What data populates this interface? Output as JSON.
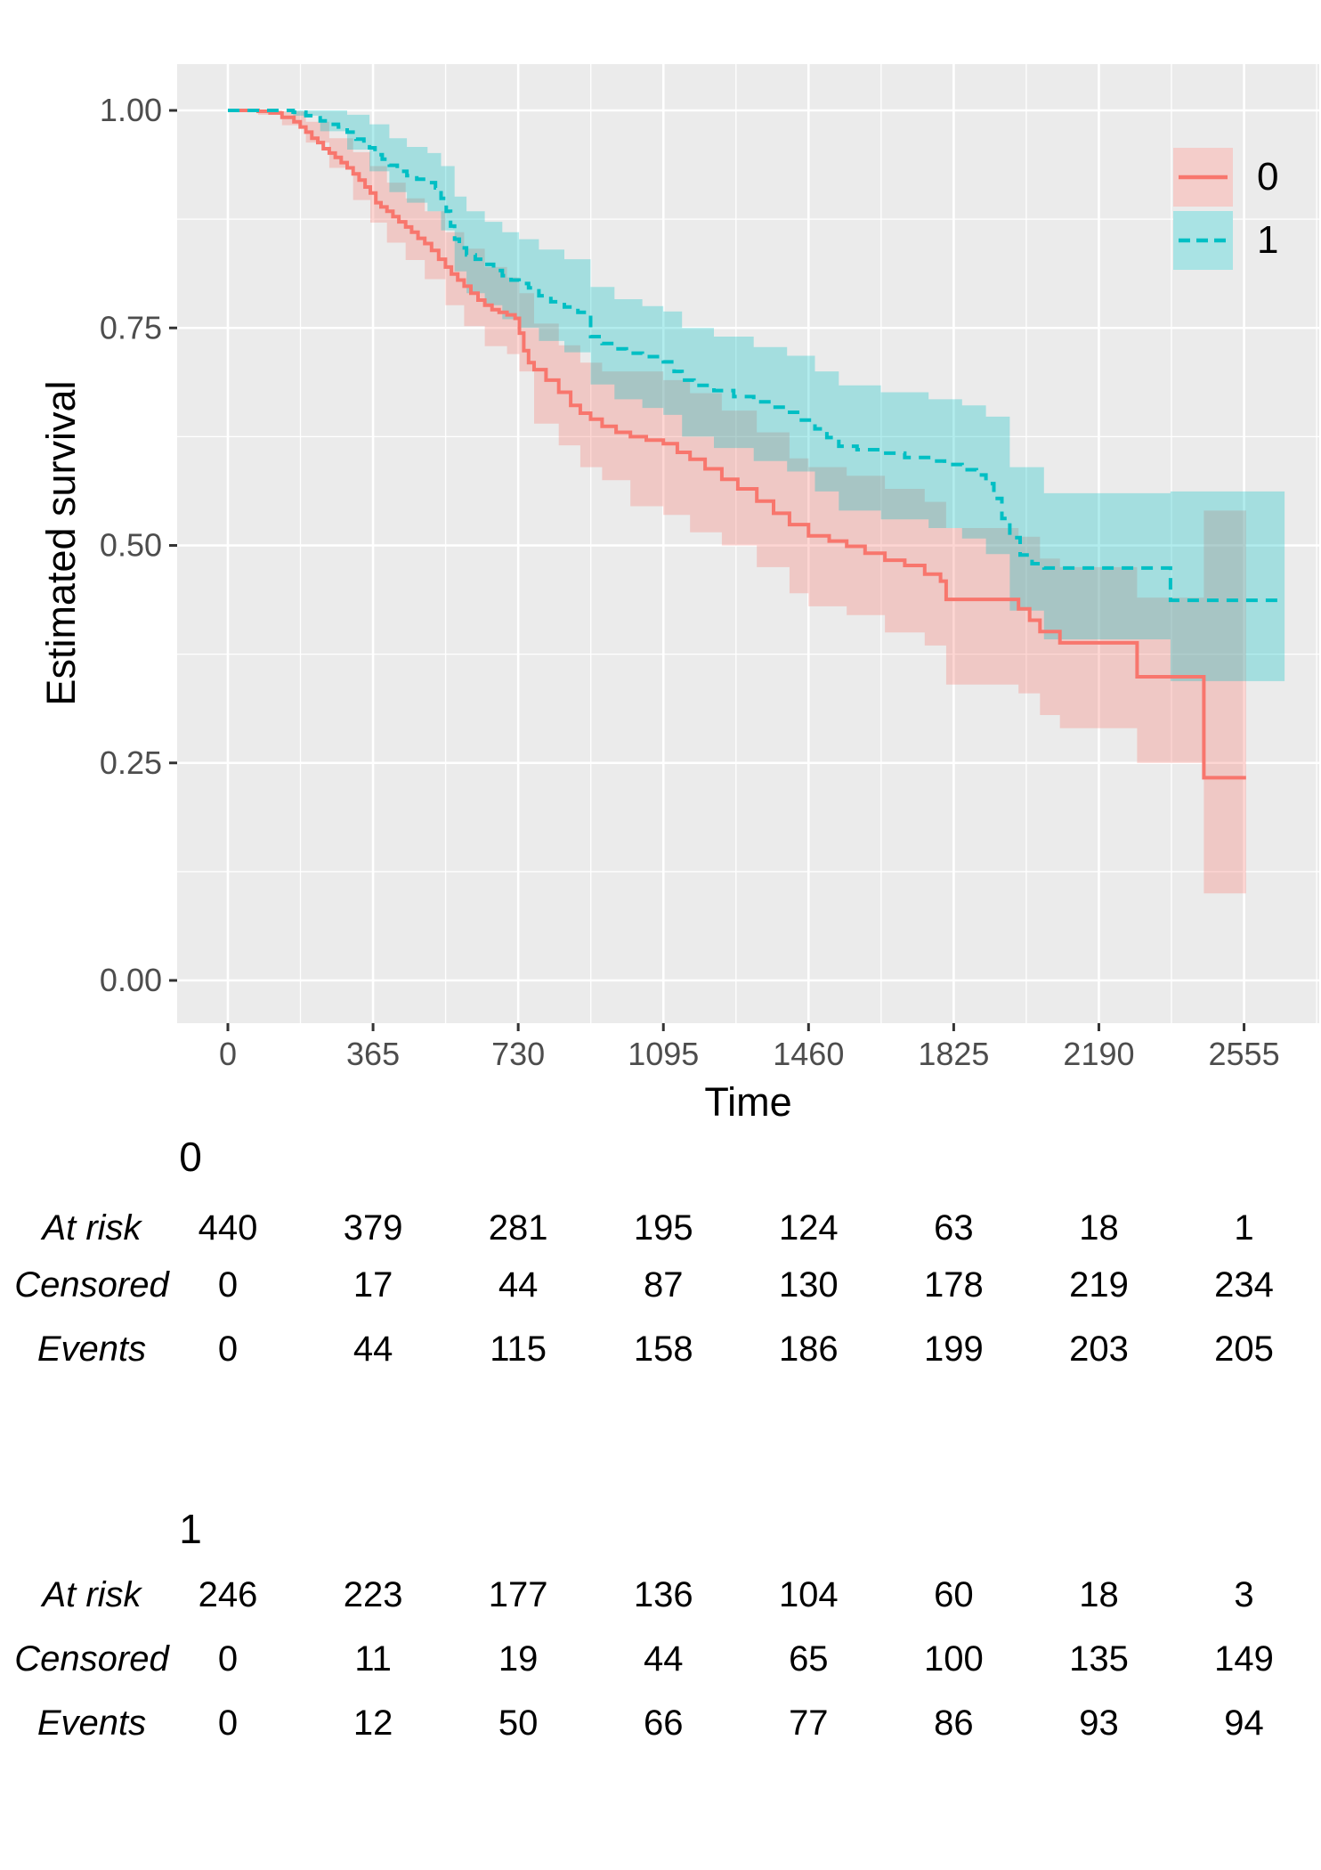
{
  "figure": {
    "panel_background": "#EBEBEB",
    "grid_color": "#FFFFFF",
    "tick_color": "#333333",
    "tick_label_color": "#4D4D4D",
    "legend_key_background": "#F2F2F2",
    "text_color": "#000000"
  },
  "chart_data": {
    "type": "line",
    "subtype": "kaplan_meier_step_with_confidence_bands",
    "title": "",
    "xlabel": "Time",
    "ylabel": "Estimated survival",
    "x_ticks": [
      0,
      365,
      730,
      1095,
      1460,
      1825,
      2190,
      2555
    ],
    "y_ticks": [
      0,
      0.25,
      0.5,
      0.75,
      1
    ],
    "y_tick_labels": [
      "0.00",
      "0.25",
      "0.50",
      "0.75",
      "1.00"
    ],
    "xlim": [
      -128,
      2745
    ],
    "ylim": [
      -0.051,
      1.051
    ],
    "grid": true,
    "legend_position": "inside-top-right",
    "series": [
      {
        "name": "0",
        "line_color": "#F8766D",
        "line_style": "solid",
        "band_color": "rgba(248,118,109,0.30)",
        "steps": [
          [
            0,
            1.0
          ],
          [
            76,
            0.999
          ],
          [
            106,
            0.997
          ],
          [
            136,
            0.992
          ],
          [
            166,
            0.987
          ],
          [
            182,
            0.981
          ],
          [
            196,
            0.975
          ],
          [
            211,
            0.968
          ],
          [
            226,
            0.963
          ],
          [
            240,
            0.956
          ],
          [
            255,
            0.951
          ],
          [
            270,
            0.946
          ],
          [
            285,
            0.94
          ],
          [
            300,
            0.934
          ],
          [
            315,
            0.927
          ],
          [
            330,
            0.92
          ],
          [
            345,
            0.912
          ],
          [
            358,
            0.905
          ],
          [
            372,
            0.894
          ],
          [
            385,
            0.889
          ],
          [
            400,
            0.884
          ],
          [
            415,
            0.878
          ],
          [
            430,
            0.872
          ],
          [
            447,
            0.866
          ],
          [
            462,
            0.86
          ],
          [
            478,
            0.853
          ],
          [
            495,
            0.847
          ],
          [
            512,
            0.839
          ],
          [
            530,
            0.829
          ],
          [
            547,
            0.82
          ],
          [
            562,
            0.812
          ],
          [
            578,
            0.805
          ],
          [
            594,
            0.798
          ],
          [
            611,
            0.79
          ],
          [
            629,
            0.782
          ],
          [
            646,
            0.776
          ],
          [
            664,
            0.771
          ],
          [
            682,
            0.768
          ],
          [
            702,
            0.765
          ],
          [
            722,
            0.761
          ],
          [
            733,
            0.744
          ],
          [
            744,
            0.724
          ],
          [
            756,
            0.71
          ],
          [
            770,
            0.702
          ],
          [
            800,
            0.69
          ],
          [
            832,
            0.676
          ],
          [
            862,
            0.661
          ],
          [
            886,
            0.652
          ],
          [
            912,
            0.645
          ],
          [
            941,
            0.637
          ],
          [
            976,
            0.63
          ],
          [
            1012,
            0.625
          ],
          [
            1052,
            0.621
          ],
          [
            1095,
            0.617
          ],
          [
            1130,
            0.607
          ],
          [
            1162,
            0.599
          ],
          [
            1200,
            0.588
          ],
          [
            1242,
            0.576
          ],
          [
            1282,
            0.565
          ],
          [
            1330,
            0.551
          ],
          [
            1372,
            0.537
          ],
          [
            1412,
            0.524
          ],
          [
            1460,
            0.511
          ],
          [
            1512,
            0.505
          ],
          [
            1556,
            0.499
          ],
          [
            1602,
            0.491
          ],
          [
            1652,
            0.483
          ],
          [
            1702,
            0.477
          ],
          [
            1752,
            0.467
          ],
          [
            1792,
            0.459
          ],
          [
            1806,
            0.438
          ],
          [
            1988,
            0.427
          ],
          [
            2016,
            0.414
          ],
          [
            2042,
            0.401
          ],
          [
            2092,
            0.388
          ],
          [
            2286,
            0.349
          ],
          [
            2454,
            0.233
          ],
          [
            2560,
            0.233
          ]
        ],
        "ci_steps": [
          [
            0,
            1.0,
            1.0
          ],
          [
            76,
            0.995,
            1.0
          ],
          [
            136,
            0.983,
            0.999
          ],
          [
            196,
            0.963,
            0.987
          ],
          [
            255,
            0.934,
            0.968
          ],
          [
            315,
            0.897,
            0.952
          ],
          [
            358,
            0.871,
            0.936
          ],
          [
            400,
            0.848,
            0.917
          ],
          [
            447,
            0.828,
            0.899
          ],
          [
            495,
            0.806,
            0.884
          ],
          [
            547,
            0.776,
            0.86
          ],
          [
            594,
            0.752,
            0.841
          ],
          [
            646,
            0.729,
            0.82
          ],
          [
            702,
            0.72,
            0.808
          ],
          [
            733,
            0.7,
            0.79
          ],
          [
            770,
            0.64,
            0.755
          ],
          [
            832,
            0.615,
            0.73
          ],
          [
            886,
            0.59,
            0.71
          ],
          [
            941,
            0.575,
            0.7
          ],
          [
            1012,
            0.545,
            0.7
          ],
          [
            1095,
            0.535,
            0.69
          ],
          [
            1162,
            0.515,
            0.675
          ],
          [
            1242,
            0.5,
            0.655
          ],
          [
            1330,
            0.475,
            0.63
          ],
          [
            1412,
            0.445,
            0.6
          ],
          [
            1460,
            0.43,
            0.59
          ],
          [
            1556,
            0.42,
            0.58
          ],
          [
            1652,
            0.4,
            0.565
          ],
          [
            1752,
            0.385,
            0.55
          ],
          [
            1806,
            0.34,
            0.52
          ],
          [
            1988,
            0.33,
            0.51
          ],
          [
            2042,
            0.305,
            0.485
          ],
          [
            2092,
            0.29,
            0.475
          ],
          [
            2286,
            0.25,
            0.44
          ],
          [
            2454,
            0.1,
            0.54
          ],
          [
            2560,
            0.1,
            0.54
          ]
        ]
      },
      {
        "name": "1",
        "line_color": "#00BFC4",
        "line_style": "dashed",
        "band_color": "rgba(0,191,196,0.30)",
        "steps": [
          [
            0,
            1.0
          ],
          [
            164,
            0.998
          ],
          [
            196,
            0.994
          ],
          [
            232,
            0.988
          ],
          [
            258,
            0.984
          ],
          [
            278,
            0.981
          ],
          [
            300,
            0.975
          ],
          [
            322,
            0.967
          ],
          [
            342,
            0.962
          ],
          [
            356,
            0.957
          ],
          [
            370,
            0.949
          ],
          [
            388,
            0.944
          ],
          [
            406,
            0.937
          ],
          [
            426,
            0.93
          ],
          [
            450,
            0.925
          ],
          [
            475,
            0.921
          ],
          [
            502,
            0.917
          ],
          [
            522,
            0.911
          ],
          [
            536,
            0.899
          ],
          [
            549,
            0.884
          ],
          [
            560,
            0.867
          ],
          [
            570,
            0.852
          ],
          [
            582,
            0.842
          ],
          [
            600,
            0.834
          ],
          [
            622,
            0.829
          ],
          [
            646,
            0.823
          ],
          [
            668,
            0.816
          ],
          [
            690,
            0.81
          ],
          [
            712,
            0.805
          ],
          [
            732,
            0.801
          ],
          [
            756,
            0.796
          ],
          [
            782,
            0.787
          ],
          [
            812,
            0.78
          ],
          [
            846,
            0.774
          ],
          [
            880,
            0.768
          ],
          [
            912,
            0.74
          ],
          [
            941,
            0.732
          ],
          [
            972,
            0.726
          ],
          [
            1002,
            0.721
          ],
          [
            1042,
            0.717
          ],
          [
            1095,
            0.711
          ],
          [
            1122,
            0.7
          ],
          [
            1142,
            0.69
          ],
          [
            1172,
            0.684
          ],
          [
            1222,
            0.678
          ],
          [
            1272,
            0.671
          ],
          [
            1322,
            0.665
          ],
          [
            1366,
            0.659
          ],
          [
            1406,
            0.653
          ],
          [
            1442,
            0.644
          ],
          [
            1476,
            0.634
          ],
          [
            1506,
            0.624
          ],
          [
            1536,
            0.614
          ],
          [
            1582,
            0.61
          ],
          [
            1642,
            0.606
          ],
          [
            1702,
            0.601
          ],
          [
            1762,
            0.597
          ],
          [
            1802,
            0.593
          ],
          [
            1846,
            0.587
          ],
          [
            1882,
            0.581
          ],
          [
            1906,
            0.571
          ],
          [
            1926,
            0.554
          ],
          [
            1946,
            0.531
          ],
          [
            1966,
            0.509
          ],
          [
            1992,
            0.489
          ],
          [
            2022,
            0.479
          ],
          [
            2052,
            0.474
          ],
          [
            2370,
            0.437
          ],
          [
            2657,
            0.437
          ]
        ],
        "ci_steps": [
          [
            0,
            1.0,
            1.0
          ],
          [
            164,
            0.994,
            1.0
          ],
          [
            232,
            0.976,
            1.0
          ],
          [
            300,
            0.955,
            0.995
          ],
          [
            356,
            0.93,
            0.984
          ],
          [
            406,
            0.906,
            0.968
          ],
          [
            450,
            0.894,
            0.958
          ],
          [
            502,
            0.884,
            0.951
          ],
          [
            536,
            0.862,
            0.936
          ],
          [
            570,
            0.815,
            0.901
          ],
          [
            600,
            0.79,
            0.884
          ],
          [
            646,
            0.776,
            0.872
          ],
          [
            690,
            0.76,
            0.86
          ],
          [
            732,
            0.75,
            0.852
          ],
          [
            782,
            0.735,
            0.84
          ],
          [
            846,
            0.722,
            0.829
          ],
          [
            912,
            0.685,
            0.797
          ],
          [
            972,
            0.668,
            0.783
          ],
          [
            1042,
            0.658,
            0.775
          ],
          [
            1095,
            0.65,
            0.769
          ],
          [
            1142,
            0.625,
            0.75
          ],
          [
            1222,
            0.612,
            0.74
          ],
          [
            1322,
            0.597,
            0.728
          ],
          [
            1406,
            0.585,
            0.718
          ],
          [
            1476,
            0.562,
            0.7
          ],
          [
            1536,
            0.54,
            0.684
          ],
          [
            1642,
            0.53,
            0.676
          ],
          [
            1762,
            0.52,
            0.668
          ],
          [
            1846,
            0.508,
            0.661
          ],
          [
            1906,
            0.49,
            0.648
          ],
          [
            1966,
            0.425,
            0.59
          ],
          [
            2052,
            0.392,
            0.56
          ],
          [
            2370,
            0.344,
            0.562
          ],
          [
            2657,
            0.344,
            0.562
          ]
        ]
      }
    ]
  },
  "risk_tables": [
    {
      "group_label": "0",
      "times": [
        0,
        365,
        730,
        1095,
        1460,
        1825,
        2190,
        2555
      ],
      "rows": [
        {
          "label": "At risk",
          "values": [
            440,
            379,
            281,
            195,
            124,
            63,
            18,
            1
          ]
        },
        {
          "label": "Censored",
          "values": [
            0,
            17,
            44,
            87,
            130,
            178,
            219,
            234
          ]
        },
        {
          "label": "Events",
          "values": [
            0,
            44,
            115,
            158,
            186,
            199,
            203,
            205
          ]
        }
      ]
    },
    {
      "group_label": "1",
      "times": [
        0,
        365,
        730,
        1095,
        1460,
        1825,
        2190,
        2555
      ],
      "rows": [
        {
          "label": "At risk",
          "values": [
            246,
            223,
            177,
            136,
            104,
            60,
            18,
            3
          ]
        },
        {
          "label": "Censored",
          "values": [
            0,
            11,
            19,
            44,
            65,
            100,
            135,
            149
          ]
        },
        {
          "label": "Events",
          "values": [
            0,
            12,
            50,
            66,
            77,
            86,
            93,
            94
          ]
        }
      ]
    }
  ]
}
